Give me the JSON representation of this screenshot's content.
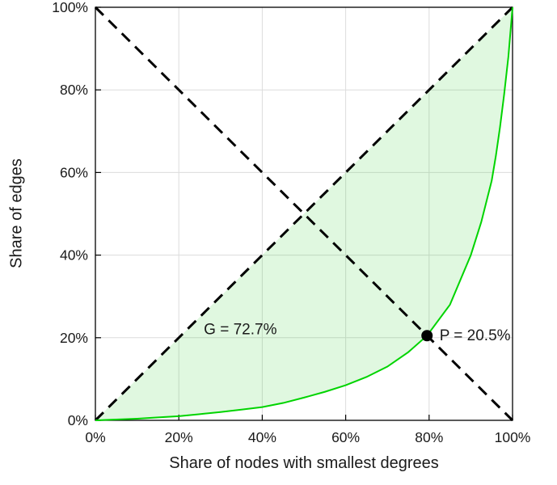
{
  "figure": {
    "background": "#ffffff"
  },
  "chart_data": {
    "type": "line",
    "title": "",
    "xlabel": "Share of nodes with smallest degrees",
    "ylabel": "Share of edges",
    "xlim": [
      0,
      100
    ],
    "ylim": [
      0,
      100
    ],
    "xtick_values": [
      0,
      20,
      40,
      60,
      80,
      100
    ],
    "xtick_labels": [
      "0%",
      "20%",
      "40%",
      "60%",
      "80%",
      "100%"
    ],
    "ytick_values": [
      0,
      20,
      40,
      60,
      80,
      100
    ],
    "ytick_labels": [
      "0%",
      "20%",
      "40%",
      "60%",
      "80%",
      "100%"
    ],
    "grid": true,
    "grid_color": "#dcdcdc",
    "axis_color": "#000000",
    "text_color": "#1a1a1a",
    "legend": "none",
    "series": [
      {
        "name": "equality-line",
        "style": "dashed",
        "color": "#000000",
        "width": 3,
        "x": [
          0,
          100
        ],
        "y": [
          0,
          100
        ]
      },
      {
        "name": "anti-diagonal-line",
        "style": "dashed",
        "color": "#000000",
        "width": 3,
        "x": [
          0,
          100
        ],
        "y": [
          100,
          0
        ]
      },
      {
        "name": "lorenz-curve",
        "style": "solid",
        "color": "#00d400",
        "width": 2,
        "x": [
          0,
          5,
          10,
          15,
          20,
          25,
          30,
          35,
          40,
          45,
          50,
          55,
          60,
          65,
          70,
          75,
          79.5,
          85,
          90,
          92.5,
          95,
          96,
          97,
          98,
          99,
          100
        ],
        "y": [
          0,
          0.2,
          0.4,
          0.7,
          1.0,
          1.5,
          2.0,
          2.6,
          3.2,
          4.2,
          5.5,
          6.9,
          8.5,
          10.5,
          13.0,
          16.5,
          20.5,
          28.0,
          40.0,
          48.0,
          58.0,
          64.0,
          71.0,
          79.0,
          88.0,
          100.0
        ]
      }
    ],
    "area": {
      "between": [
        "equality-line",
        "lorenz-curve"
      ],
      "fill": "rgba(0,200,0,0.12)"
    },
    "point": {
      "x": 79.5,
      "y": 20.5,
      "color": "#000000",
      "radius": 7
    },
    "annotations": [
      {
        "text": "G = 72.7%",
        "x": 26,
        "y": 22,
        "anchor": "start",
        "font_size": 19
      },
      {
        "text": "P = 20.5%",
        "x": 82.5,
        "y": 20.5,
        "anchor": "start",
        "font_size": 19
      }
    ],
    "gini_coefficient_percent": 72.7,
    "pareto_point_percent": 20.5
  }
}
